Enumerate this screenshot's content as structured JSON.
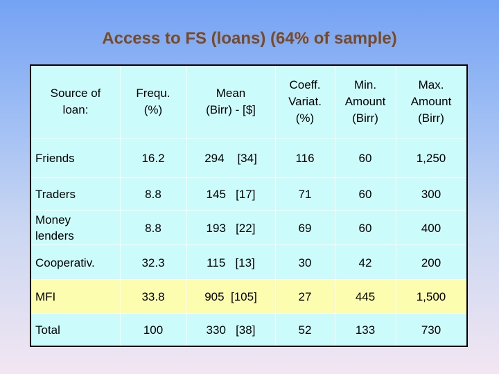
{
  "title": "Access to FS (loans) (64% of sample)",
  "headers": [
    "Source of\nloan:",
    "Frequ.\n(%)",
    "Mean\n(Birr)  -  [$]",
    "Coeff.\nVariat.\n(%)",
    "Min.\nAmount\n(Birr)",
    "Max.\nAmount\n(Birr)"
  ],
  "rows": [
    {
      "source": "Friends",
      "freq": "16.2",
      "mean": "294    [34]",
      "cv": "116",
      "min": "60",
      "max": "1,250",
      "highlight": false
    },
    {
      "source": "Traders",
      "freq": "8.8",
      "mean": "145   [17]",
      "cv": "71",
      "min": "60",
      "max": "300",
      "highlight": false
    },
    {
      "source": "Money\nlenders",
      "freq": "8.8",
      "mean": "193   [22]",
      "cv": "69",
      "min": "60",
      "max": "400",
      "highlight": false
    },
    {
      "source": "Cooperativ.",
      "freq": "32.3",
      "mean": "115   [13]",
      "cv": "30",
      "min": "42",
      "max": "200",
      "highlight": false
    },
    {
      "source": "MFI",
      "freq": "33.8",
      "mean": "905  [105]",
      "cv": "27",
      "min": "445",
      "max": "1,500",
      "highlight": true
    },
    {
      "source": "Total",
      "freq": "100",
      "mean": "330   [38]",
      "cv": "52",
      "min": "133",
      "max": "730",
      "highlight": false
    }
  ],
  "colors": {
    "title": "#7a4a24",
    "table_bg": "#ccfbfb",
    "highlight_bg": "#fdfdb0"
  }
}
